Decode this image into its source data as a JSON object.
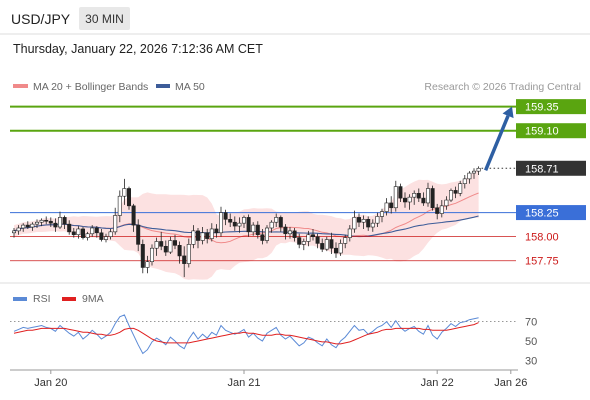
{
  "header": {
    "symbol": "USD/JPY",
    "interval": "30 MIN",
    "datetime": "Thursday, January 22, 2026 7:12:36 AM CET"
  },
  "legend": {
    "ma20_label": "MA 20 + Bollinger Bands",
    "ma50_label": "MA 50",
    "rsi_label": "RSI",
    "rsi_ma_label": "9MA",
    "credit": "Research © 2026 Trading Central"
  },
  "colors": {
    "target": "#5aa510",
    "pivot": "#3a6fd8",
    "support": "#cc1a1a",
    "current": "#333333",
    "ma50": "#3d5c99",
    "ma20": "#f08a8a",
    "band": "#fbdcdc",
    "arrow": "#2e5fa3",
    "rsi": "#5b8ad6",
    "rsi_ma": "#e02020"
  },
  "chart_data": [
    {
      "type": "candlestick",
      "title": "USD/JPY",
      "interval": "30 MIN",
      "y_range": [
        157.55,
        159.45
      ],
      "levels": [
        {
          "label": "159.35",
          "value": 159.35,
          "kind": "target"
        },
        {
          "label": "159.10",
          "value": 159.1,
          "kind": "target"
        },
        {
          "label": "158.71",
          "value": 158.71,
          "kind": "current"
        },
        {
          "label": "158.25",
          "value": 158.25,
          "kind": "pivot"
        },
        {
          "label": "158.00",
          "value": 158.0,
          "kind": "support"
        },
        {
          "label": "157.75",
          "value": 157.75,
          "kind": "support"
        }
      ],
      "arrow": {
        "from": 158.71,
        "to": 159.35
      },
      "x_tick_labels": [
        "Jan 20",
        "Jan 21",
        "Jan 22",
        "Jan 26"
      ],
      "x_tick_bars": [
        8,
        50,
        92,
        108
      ],
      "series": [
        {
          "name": "MA 20 + Bollinger Bands",
          "type": "ma_with_bands"
        },
        {
          "name": "MA 50",
          "type": "ma"
        }
      ],
      "ohlc": [
        [
          158.04,
          158.09,
          157.99,
          158.06
        ],
        [
          158.06,
          158.12,
          158.02,
          158.09
        ],
        [
          158.09,
          158.14,
          158.05,
          158.12
        ],
        [
          158.12,
          158.16,
          158.08,
          158.1
        ],
        [
          158.1,
          158.15,
          158.06,
          158.13
        ],
        [
          158.13,
          158.18,
          158.09,
          158.15
        ],
        [
          158.15,
          158.19,
          158.11,
          158.17
        ],
        [
          158.17,
          158.21,
          158.13,
          158.16
        ],
        [
          158.16,
          158.2,
          158.1,
          158.14
        ],
        [
          158.14,
          158.19,
          158.05,
          158.1
        ],
        [
          158.1,
          158.26,
          158.08,
          158.2
        ],
        [
          158.2,
          158.22,
          158.08,
          158.13
        ],
        [
          158.13,
          158.17,
          158.02,
          158.05
        ],
        [
          158.05,
          158.09,
          157.99,
          158.02
        ],
        [
          158.02,
          158.11,
          157.98,
          158.08
        ],
        [
          158.08,
          158.1,
          157.97,
          157.99
        ],
        [
          157.99,
          158.05,
          157.96,
          158.03
        ],
        [
          158.03,
          158.12,
          158.0,
          158.09
        ],
        [
          158.09,
          158.11,
          157.99,
          158.04
        ],
        [
          158.04,
          158.08,
          157.95,
          157.97
        ],
        [
          157.97,
          158.03,
          157.94,
          158.0
        ],
        [
          158.0,
          158.08,
          157.97,
          158.05
        ],
        [
          158.05,
          158.3,
          158.02,
          158.22
        ],
        [
          158.22,
          158.48,
          158.15,
          158.42
        ],
        [
          158.42,
          158.6,
          158.33,
          158.5
        ],
        [
          158.5,
          158.52,
          158.28,
          158.32
        ],
        [
          158.32,
          158.34,
          158.05,
          158.12
        ],
        [
          158.12,
          158.18,
          157.85,
          157.92
        ],
        [
          157.92,
          157.97,
          157.62,
          157.68
        ],
        [
          157.68,
          157.8,
          157.62,
          157.74
        ],
        [
          157.74,
          157.92,
          157.7,
          157.88
        ],
        [
          157.88,
          157.99,
          157.8,
          157.95
        ],
        [
          157.95,
          158.05,
          157.86,
          157.9
        ],
        [
          157.9,
          157.96,
          157.8,
          157.84
        ],
        [
          157.84,
          158.0,
          157.82,
          157.96
        ],
        [
          157.96,
          158.02,
          157.87,
          157.91
        ],
        [
          157.91,
          157.95,
          157.72,
          157.8
        ],
        [
          157.8,
          157.9,
          157.58,
          157.72
        ],
        [
          157.72,
          157.98,
          157.68,
          157.92
        ],
        [
          157.92,
          158.12,
          157.88,
          158.06
        ],
        [
          158.06,
          158.09,
          157.88,
          157.96
        ],
        [
          157.96,
          158.1,
          157.92,
          158.04
        ],
        [
          158.04,
          158.08,
          157.93,
          157.98
        ],
        [
          157.98,
          158.14,
          157.95,
          158.08
        ],
        [
          158.08,
          158.13,
          157.99,
          158.04
        ],
        [
          158.04,
          158.31,
          158.0,
          158.25
        ],
        [
          158.25,
          158.28,
          158.12,
          158.18
        ],
        [
          158.18,
          158.24,
          158.1,
          158.15
        ],
        [
          158.15,
          158.21,
          158.06,
          158.11
        ],
        [
          158.11,
          158.2,
          158.04,
          158.14
        ],
        [
          158.14,
          158.22,
          158.09,
          158.2
        ],
        [
          158.2,
          158.23,
          158.0,
          158.05
        ],
        [
          158.05,
          158.15,
          158.01,
          158.12
        ],
        [
          158.12,
          158.16,
          157.98,
          158.02
        ],
        [
          158.02,
          158.08,
          157.92,
          157.96
        ],
        [
          157.96,
          158.12,
          157.93,
          158.09
        ],
        [
          158.09,
          158.17,
          158.04,
          158.15
        ],
        [
          158.15,
          158.24,
          158.1,
          158.2
        ],
        [
          158.2,
          158.22,
          158.05,
          158.1
        ],
        [
          158.1,
          158.13,
          157.97,
          158.03
        ],
        [
          158.03,
          158.1,
          157.98,
          158.06
        ],
        [
          158.06,
          158.09,
          157.95,
          157.99
        ],
        [
          157.99,
          158.03,
          157.88,
          157.92
        ],
        [
          157.92,
          157.98,
          157.86,
          157.95
        ],
        [
          157.95,
          158.06,
          157.9,
          158.02
        ],
        [
          158.02,
          158.08,
          157.96,
          158.0
        ],
        [
          158.0,
          158.03,
          157.88,
          157.93
        ],
        [
          157.93,
          157.98,
          157.84,
          157.87
        ],
        [
          157.87,
          158.0,
          157.85,
          157.97
        ],
        [
          157.97,
          158.04,
          157.82,
          157.88
        ],
        [
          157.88,
          157.94,
          157.78,
          157.83
        ],
        [
          157.83,
          157.97,
          157.8,
          157.93
        ],
        [
          157.93,
          158.02,
          157.88,
          157.99
        ],
        [
          157.99,
          158.12,
          157.95,
          158.08
        ],
        [
          158.08,
          158.27,
          158.04,
          158.2
        ],
        [
          158.2,
          158.24,
          158.1,
          158.15
        ],
        [
          158.15,
          158.22,
          158.08,
          158.18
        ],
        [
          158.18,
          158.21,
          158.06,
          158.1
        ],
        [
          158.1,
          158.18,
          158.05,
          158.14
        ],
        [
          158.14,
          158.25,
          158.1,
          158.21
        ],
        [
          158.21,
          158.29,
          158.15,
          158.26
        ],
        [
          158.26,
          158.4,
          158.22,
          158.35
        ],
        [
          158.35,
          158.42,
          158.24,
          158.3
        ],
        [
          158.3,
          158.58,
          158.26,
          158.52
        ],
        [
          158.52,
          158.55,
          158.36,
          158.4
        ],
        [
          158.4,
          158.46,
          158.3,
          158.36
        ],
        [
          158.36,
          158.44,
          158.28,
          158.41
        ],
        [
          158.41,
          158.48,
          158.33,
          158.45
        ],
        [
          158.45,
          158.5,
          158.36,
          158.4
        ],
        [
          158.4,
          158.46,
          158.32,
          158.35
        ],
        [
          158.35,
          158.56,
          158.31,
          158.5
        ],
        [
          158.5,
          158.53,
          158.27,
          158.3
        ],
        [
          158.3,
          158.34,
          158.18,
          158.24
        ],
        [
          158.24,
          158.38,
          158.2,
          158.32
        ],
        [
          158.32,
          158.42,
          158.28,
          158.38
        ],
        [
          158.38,
          158.5,
          158.36,
          158.48
        ],
        [
          158.48,
          158.52,
          158.4,
          158.45
        ],
        [
          158.45,
          158.58,
          158.42,
          158.55
        ],
        [
          158.55,
          158.64,
          158.5,
          158.6
        ],
        [
          158.6,
          158.68,
          158.55,
          158.66
        ],
        [
          158.66,
          158.71,
          158.6,
          158.68
        ],
        [
          158.68,
          158.73,
          158.64,
          158.71
        ]
      ]
    },
    {
      "type": "line",
      "title": "RSI",
      "y_ticks": [
        30,
        50,
        70
      ],
      "y_range": [
        22,
        80
      ],
      "series": [
        {
          "name": "RSI",
          "values": [
            60,
            62,
            64,
            63,
            64,
            65,
            66,
            64,
            63,
            60,
            66,
            62,
            58,
            55,
            59,
            52,
            56,
            61,
            57,
            52,
            55,
            59,
            68,
            75,
            77,
            66,
            56,
            46,
            37,
            41,
            49,
            53,
            50,
            46,
            54,
            50,
            45,
            42,
            52,
            59,
            52,
            57,
            53,
            59,
            56,
            66,
            61,
            59,
            57,
            59,
            62,
            54,
            58,
            53,
            50,
            58,
            61,
            64,
            56,
            52,
            55,
            50,
            45,
            48,
            54,
            52,
            48,
            45,
            52,
            46,
            43,
            50,
            54,
            60,
            66,
            61,
            62,
            57,
            60,
            64,
            66,
            70,
            64,
            71,
            64,
            60,
            63,
            65,
            60,
            57,
            66,
            56,
            52,
            59,
            63,
            68,
            65,
            69,
            70,
            72,
            73,
            74
          ]
        },
        {
          "name": "9MA",
          "values": [
            58,
            59,
            60,
            61,
            61,
            62,
            63,
            63,
            63,
            63,
            63,
            63,
            62,
            61,
            60,
            59,
            59,
            58,
            57,
            57,
            56,
            56,
            57,
            59,
            62,
            63,
            63,
            61,
            58,
            55,
            52,
            50,
            49,
            48,
            48,
            48,
            48,
            48,
            48,
            49,
            50,
            51,
            52,
            53,
            54,
            55,
            56,
            57,
            58,
            58,
            59,
            58,
            58,
            57,
            56,
            56,
            56,
            57,
            57,
            56,
            56,
            55,
            54,
            53,
            52,
            51,
            50,
            49,
            49,
            48,
            47,
            47,
            48,
            49,
            51,
            53,
            55,
            57,
            58,
            59,
            61,
            62,
            62,
            63,
            63,
            63,
            63,
            63,
            63,
            62,
            62,
            61,
            61,
            61,
            61,
            62,
            63,
            64,
            65,
            66,
            67,
            69
          ]
        }
      ]
    }
  ]
}
